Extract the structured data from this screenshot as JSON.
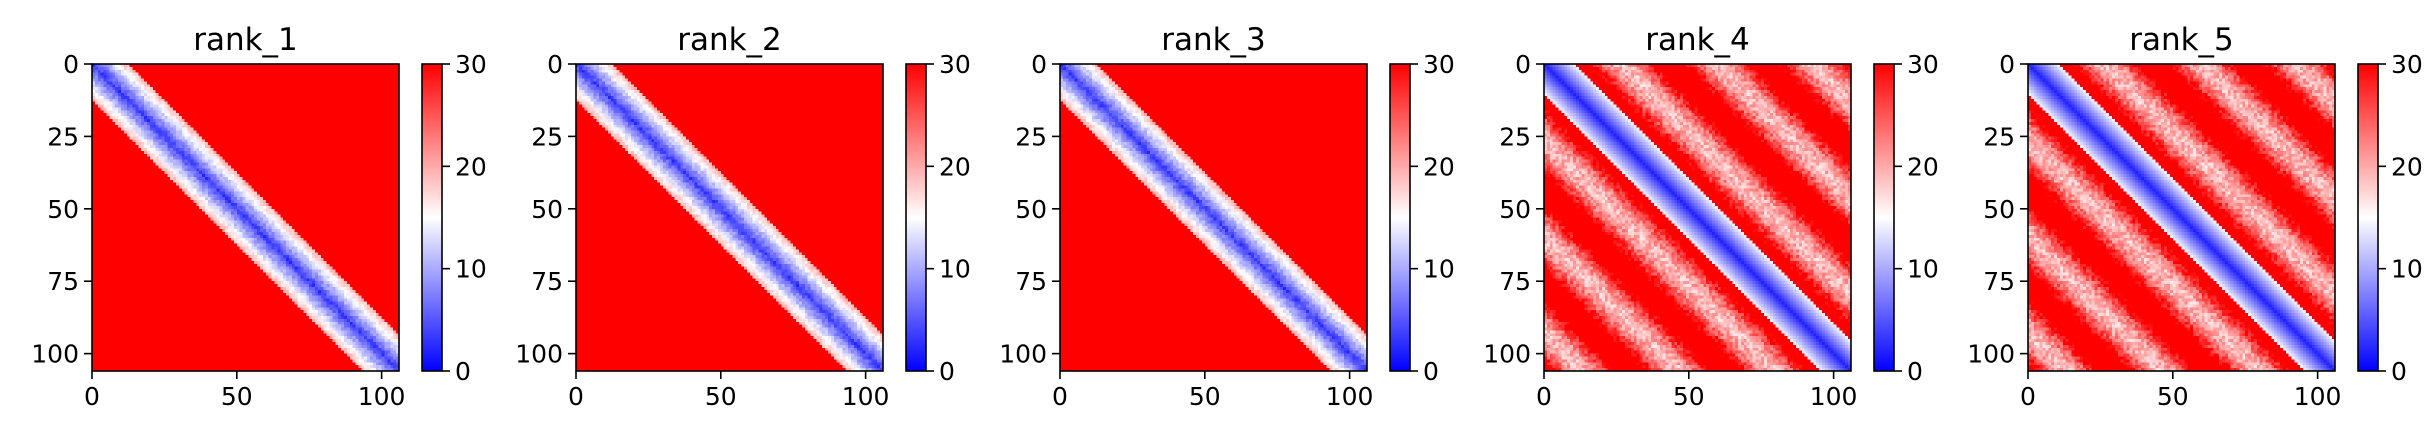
{
  "chart_data": [
    {
      "type": "heatmap",
      "title": "rank_1",
      "colormap": "bwr",
      "x_ticks": [
        0,
        50,
        100
      ],
      "y_ticks": [
        0,
        25,
        50,
        75,
        100
      ],
      "xlim": [
        0,
        106
      ],
      "ylim": [
        106,
        0
      ],
      "colorbar": {
        "range": [
          0,
          30
        ],
        "ticks": [
          0,
          10,
          20,
          30
        ]
      },
      "pattern": "contact/distance map: low values (blue) along the main diagonal, high values (red, saturating at 30) elsewhere"
    },
    {
      "type": "heatmap",
      "title": "rank_2",
      "colormap": "bwr",
      "x_ticks": [
        0,
        50,
        100
      ],
      "y_ticks": [
        0,
        25,
        50,
        75,
        100
      ],
      "xlim": [
        0,
        106
      ],
      "ylim": [
        106,
        0
      ],
      "colorbar": {
        "range": [
          0,
          30
        ],
        "ticks": [
          0,
          10,
          20,
          30
        ]
      },
      "pattern": "contact/distance map: low values (blue) along the main diagonal, high values (red, saturating at 30) elsewhere"
    },
    {
      "type": "heatmap",
      "title": "rank_3",
      "colormap": "bwr",
      "x_ticks": [
        0,
        50,
        100
      ],
      "y_ticks": [
        0,
        25,
        50,
        75,
        100
      ],
      "xlim": [
        0,
        106
      ],
      "ylim": [
        106,
        0
      ],
      "colorbar": {
        "range": [
          0,
          30
        ],
        "ticks": [
          0,
          10,
          20,
          30
        ]
      },
      "pattern": "contact/distance map: low values (blue) along the main diagonal, high values (red, saturating at 30) elsewhere"
    },
    {
      "type": "heatmap",
      "title": "rank_4",
      "colormap": "bwr",
      "x_ticks": [
        0,
        50,
        100
      ],
      "y_ticks": [
        0,
        25,
        50,
        75,
        100
      ],
      "xlim": [
        0,
        106
      ],
      "ylim": [
        106,
        0
      ],
      "colorbar": {
        "range": [
          0,
          30
        ],
        "ticks": [
          0,
          10,
          20,
          30
        ]
      },
      "pattern": "blue main diagonal with lighter parallel off-diagonal stripes over a red background"
    },
    {
      "type": "heatmap",
      "title": "rank_5",
      "colormap": "bwr",
      "x_ticks": [
        0,
        50,
        100
      ],
      "y_ticks": [
        0,
        25,
        50,
        75,
        100
      ],
      "xlim": [
        0,
        106
      ],
      "ylim": [
        106,
        0
      ],
      "colorbar": {
        "range": [
          0,
          30
        ],
        "ticks": [
          0,
          10,
          20,
          30
        ]
      },
      "pattern": "blue main diagonal with lighter parallel off-diagonal stripes over a red background"
    }
  ],
  "colors": {
    "low": "#0000ff",
    "mid": "#ffffff",
    "high": "#ff0000"
  }
}
